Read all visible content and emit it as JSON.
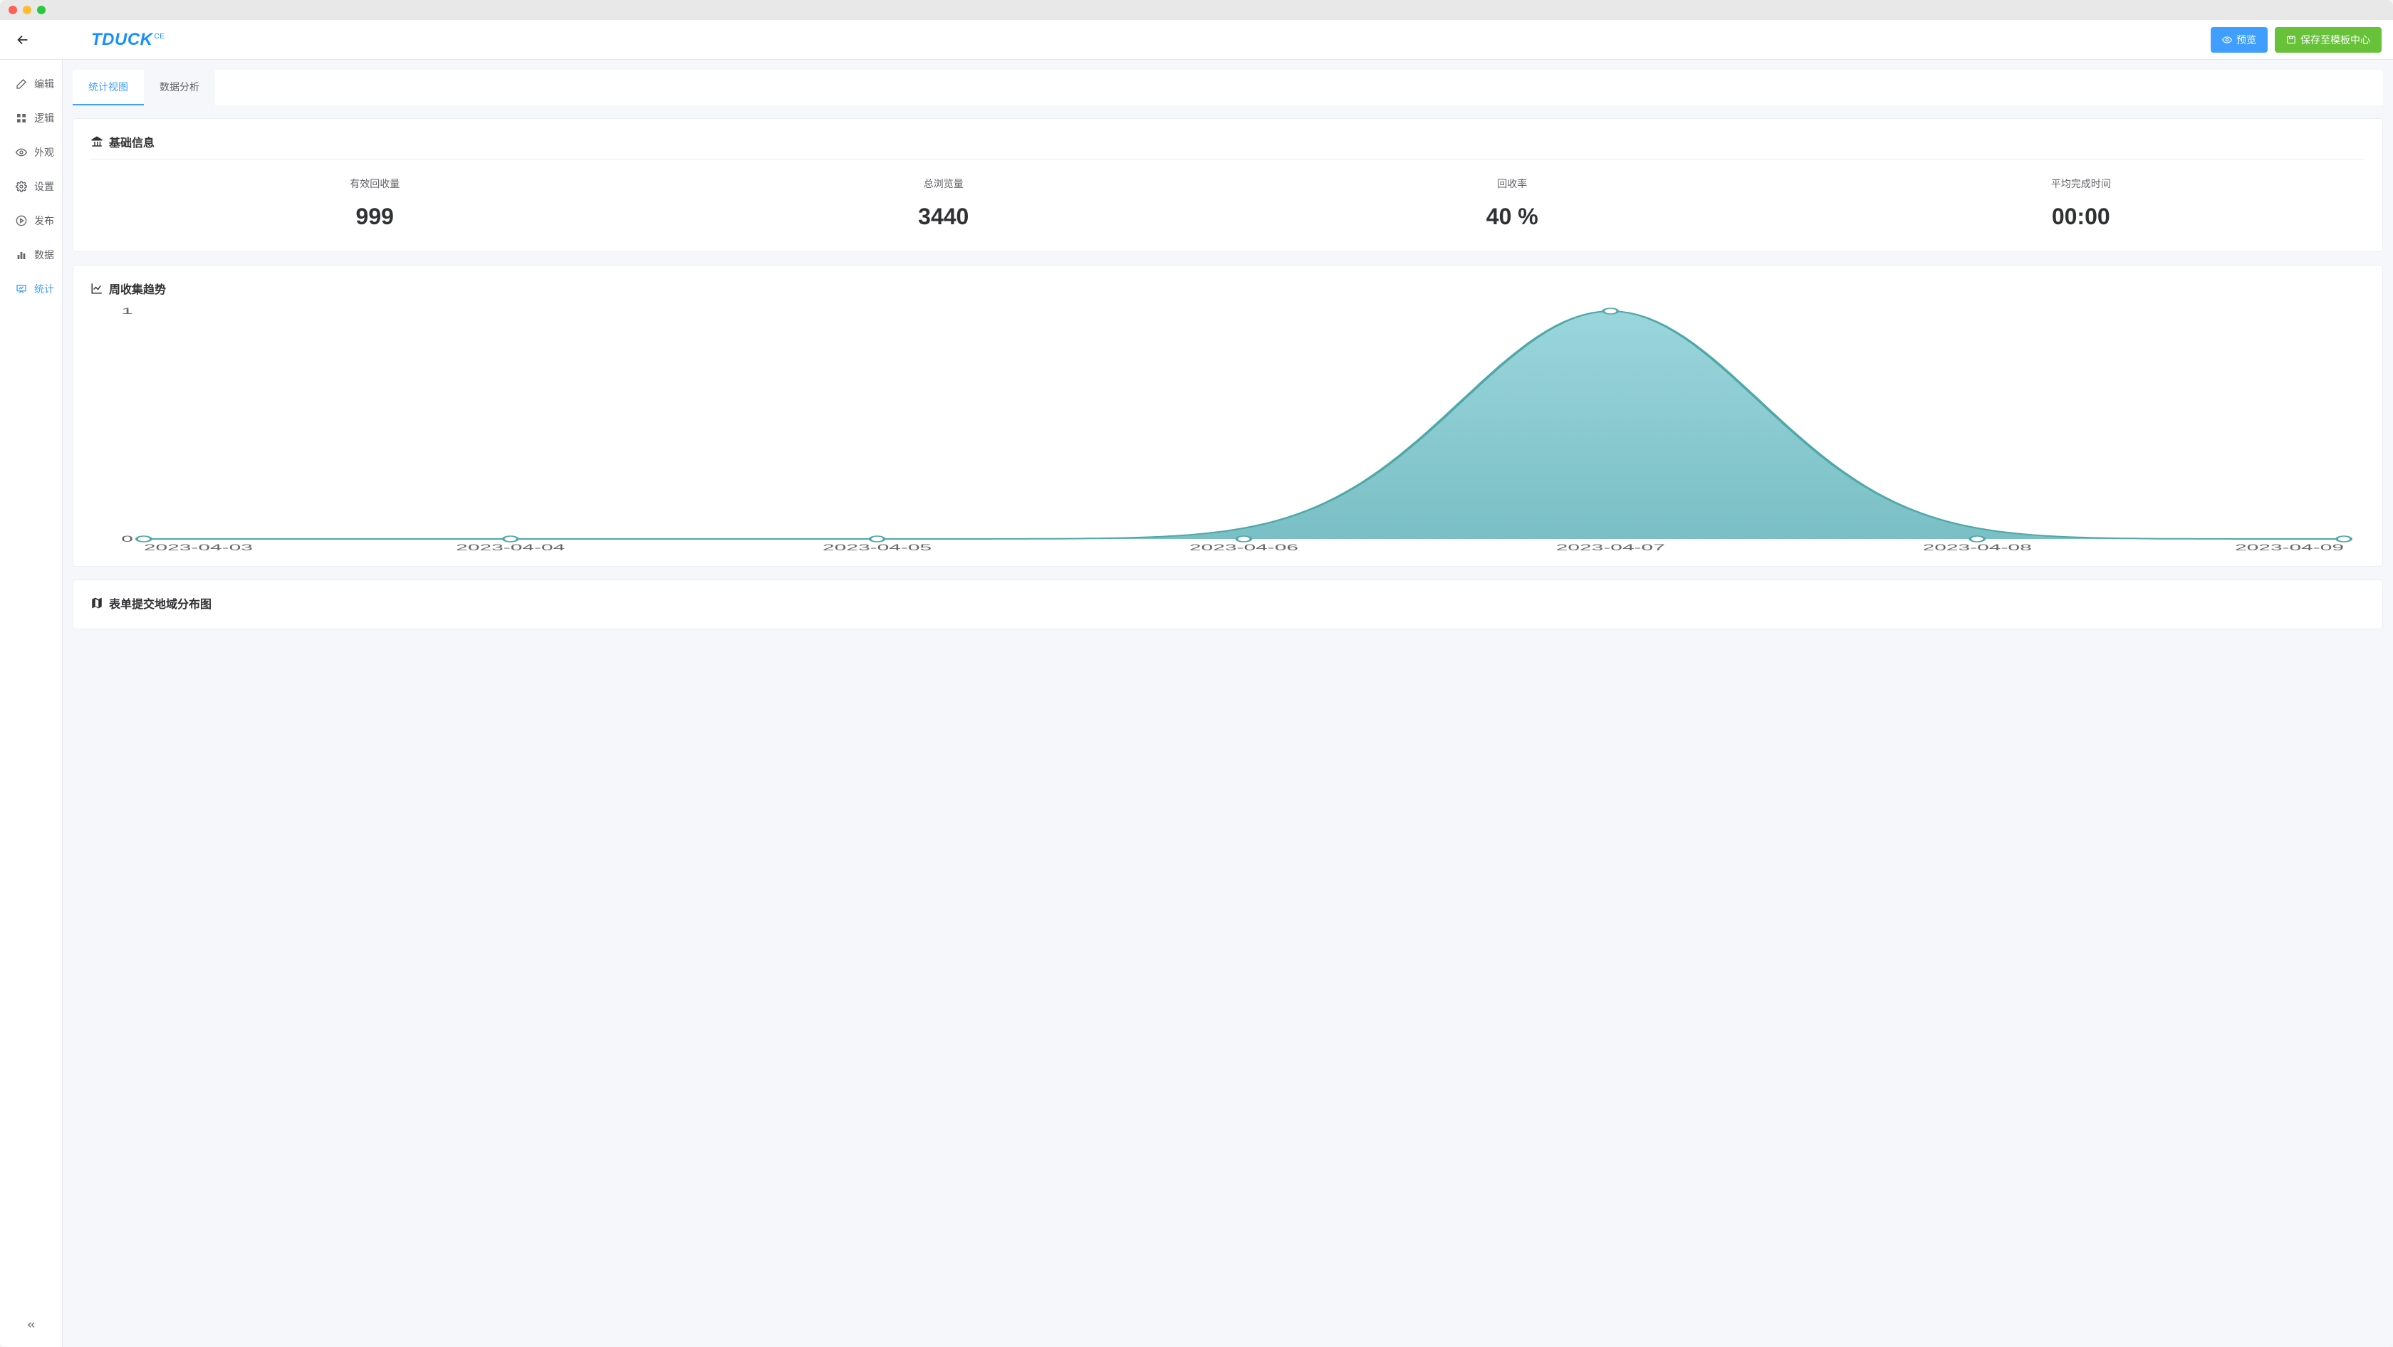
{
  "brand": {
    "name": "TDUCK",
    "suffix": "CE"
  },
  "topbar": {
    "preview_label": "预览",
    "save_template_label": "保存至模板中心"
  },
  "sidebar": {
    "items": [
      {
        "id": "edit",
        "label": "编辑"
      },
      {
        "id": "logic",
        "label": "逻辑"
      },
      {
        "id": "appear",
        "label": "外观"
      },
      {
        "id": "setting",
        "label": "设置"
      },
      {
        "id": "publish",
        "label": "发布"
      },
      {
        "id": "data",
        "label": "数据"
      },
      {
        "id": "stats",
        "label": "统计"
      }
    ],
    "active": "stats"
  },
  "tabs": {
    "items": [
      {
        "id": "view",
        "label": "统计视图"
      },
      {
        "id": "analysis",
        "label": "数据分析"
      }
    ],
    "active": "view"
  },
  "basic_info": {
    "title": "基础信息",
    "stats": [
      {
        "label": "有效回收量",
        "value": "999"
      },
      {
        "label": "总浏览量",
        "value": "3440"
      },
      {
        "label": "回收率",
        "value": "40 %"
      },
      {
        "label": "平均完成时间",
        "value": "00:00"
      }
    ]
  },
  "trend_chart": {
    "title": "周收集趋势",
    "type": "area",
    "x_labels": [
      "2023-04-03",
      "2023-04-04",
      "2023-04-05",
      "2023-04-06",
      "2023-04-07",
      "2023-04-08",
      "2023-04-09"
    ],
    "values": [
      0,
      0,
      0,
      0,
      1,
      0,
      0
    ],
    "ylim": [
      0,
      1
    ],
    "y_ticks": [
      0,
      1
    ],
    "line_color": "#4fa8a8",
    "line_width": 2,
    "fill_top_color": "#8fd1d8",
    "fill_bottom_color": "#6bb8bf",
    "fill_opacity": 0.9,
    "marker_color": "#ffffff",
    "marker_border": "#4fa8a8",
    "marker_radius": 4,
    "axis_label_color": "#666666",
    "axis_label_fontsize": 12,
    "background_color": "#ffffff"
  },
  "region_card": {
    "title": "表单提交地域分布图"
  }
}
